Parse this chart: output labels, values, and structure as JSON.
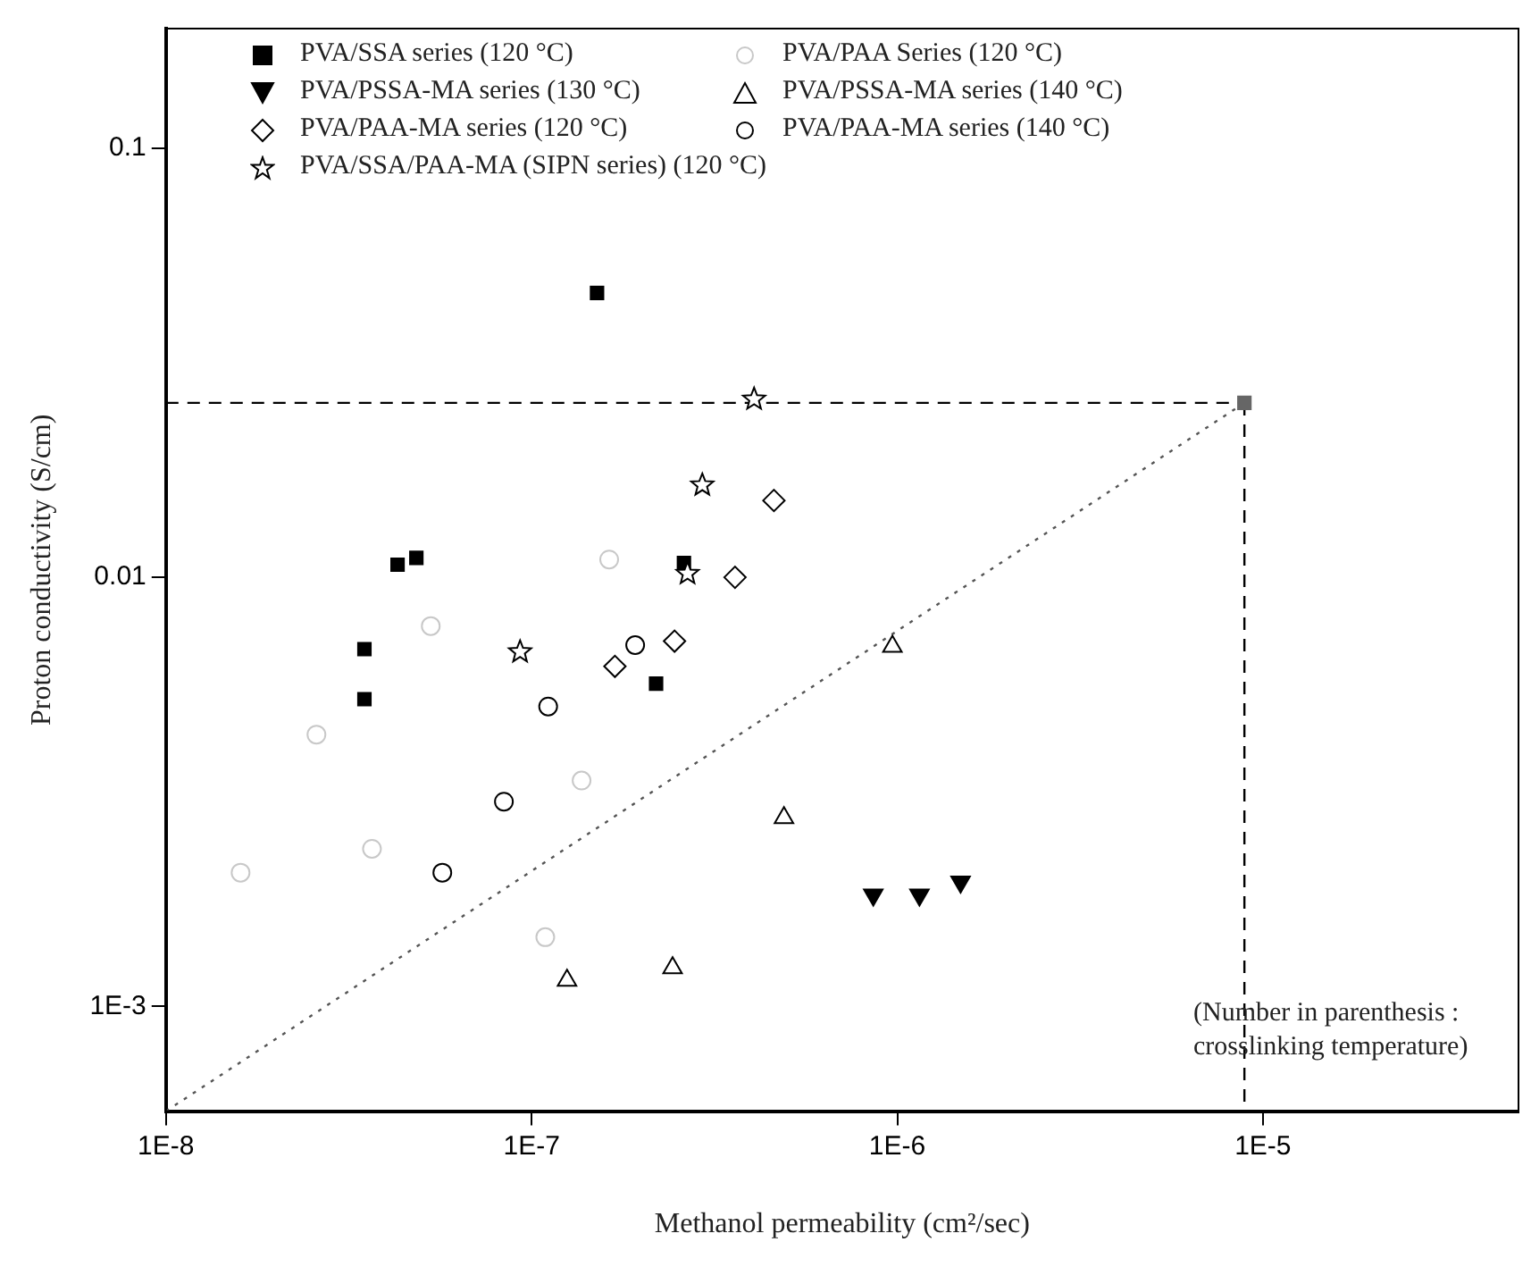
{
  "chart_data": {
    "type": "scatter",
    "xlabel": "Methanol permeability (cm²/sec)",
    "ylabel": "Proton conductivity (S/cm)",
    "log": "xy",
    "xlim": [
      1e-08,
      5e-05
    ],
    "ylim": [
      0.00057,
      0.19
    ],
    "xticks": [
      {
        "value": 1e-08,
        "label": "1E-8"
      },
      {
        "value": 1e-07,
        "label": "1E-7"
      },
      {
        "value": 1e-06,
        "label": "1E-6"
      },
      {
        "value": 1e-05,
        "label": "1E-5"
      }
    ],
    "yticks": [
      {
        "value": 0.001,
        "label": "1E-3"
      },
      {
        "value": 0.01,
        "label": "0.01"
      },
      {
        "value": 0.1,
        "label": "0.1"
      }
    ],
    "grid": false,
    "legend": "top left",
    "annotations": [
      "(Number in parenthesis : crosslinking temperature)"
    ],
    "series": [
      {
        "name": "PVA/SSA series (120 °C)",
        "color": "#000000",
        "marker": "square",
        "x": [
          3.49e-08,
          3.49e-08,
          4.3e-08,
          4.84e-08,
          1.51e-07,
          2.61e-07,
          2.19e-07
        ],
        "values": [
          0.0068,
          0.0052,
          0.0107,
          0.0111,
          0.046,
          0.0108,
          0.00565
        ]
      },
      {
        "name": "PVA/PAA Series (120 °C)",
        "color": "#c8c8c8",
        "marker": "circle",
        "x": [
          2.58e-08,
          3.66e-08,
          1.6e-08,
          1.37e-07,
          1.09e-07,
          1.63e-07,
          5.3e-08
        ],
        "values": [
          0.0043,
          0.00233,
          0.00205,
          0.00336,
          0.00145,
          0.011,
          0.0077
        ]
      },
      {
        "name": "PVA/PSSA-MA series (130 °C)",
        "color": "#000000",
        "marker": "triangle-down",
        "x": [
          8.6e-07,
          1.15e-06,
          1.49e-06
        ],
        "values": [
          0.00182,
          0.00182,
          0.00195
        ]
      },
      {
        "name": "PVA/PSSA-MA series (140 °C)",
        "color": "#000000",
        "marker": "triangle",
        "x": [
          1.25e-07,
          2.43e-07,
          4.9e-07,
          9.7e-07
        ],
        "values": [
          0.00115,
          0.00123,
          0.00275,
          0.0069
        ]
      },
      {
        "name": "PVA/PAA-MA series (120 °C)",
        "color": "#000000",
        "marker": "diamond",
        "x": [
          1.69e-07,
          2.46e-07,
          3.6e-07,
          4.6e-07
        ],
        "values": [
          0.0062,
          0.0071,
          0.01,
          0.0151
        ]
      },
      {
        "name": "PVA/PAA-MA series (140 °C)",
        "color": "#000000",
        "marker": "circle",
        "x": [
          1.92e-07,
          1.11e-07,
          8.4e-08,
          5.7e-08
        ],
        "values": [
          0.00695,
          0.005,
          0.003,
          0.00205
        ]
      },
      {
        "name": "PVA/SSA/PAA-MA (SIPN series) (120 °C)",
        "color": "#000000",
        "marker": "star",
        "x": [
          4.06e-07,
          2.93e-07,
          2.67e-07,
          9.3e-08
        ],
        "values": [
          0.026,
          0.0164,
          0.0102,
          0.0067
        ]
      },
      {
        "color": "#666666",
        "marker": "square",
        "x": [
          8.9e-06
        ],
        "values": [
          0.0255
        ]
      },
      {
        "type": "line",
        "color": "#000000",
        "line_style": "dashed",
        "x": [
          1e-08,
          8.9e-06
        ],
        "values": [
          0.0255,
          0.0255
        ]
      },
      {
        "type": "line",
        "color": "#000000",
        "line_style": "dashed",
        "x": [
          8.9e-06,
          8.9e-06
        ],
        "values": [
          0.0255,
          0.00057
        ]
      },
      {
        "type": "line",
        "color": "#555555",
        "line_style": "dotted",
        "x": [
          1e-08,
          8.9e-06
        ],
        "values": [
          0.00057,
          0.0255
        ]
      }
    ]
  }
}
